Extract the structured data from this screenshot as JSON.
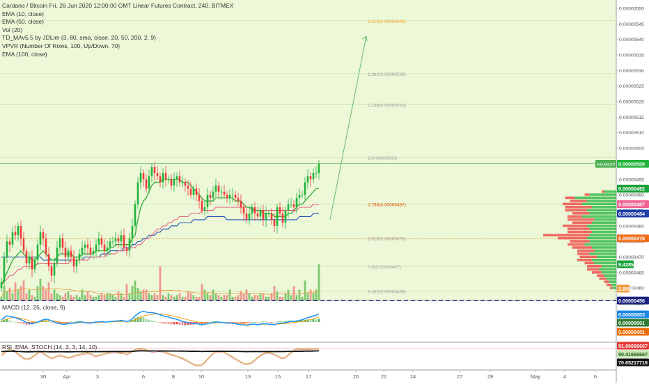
{
  "legend": {
    "title": "Cardano / Bitcoin Fri, 26 Jun 2020 12:00:00 GMT Linear Futures Contract, 240, BITMEX",
    "studies": [
      "EMA (10, close)",
      "EMA (50, close)",
      "Vol (20)",
      "TD_MAv5.5 by JDLim (3, 80, sma, close, 20, 50, 200, 2, 9)",
      "VPVR (Number Of Rows, 100, Up/Down, 70)",
      "EMA (100, close)"
    ]
  },
  "macd_label": "MACD (12, 26, close, 9)",
  "rsi_label": "RSI_EMA_STOCH (14, 3, 3, 14, 10)",
  "price_axis": {
    "ticks": [
      "0.00000550",
      "0.00000545",
      "0.00000540",
      "0.00000535",
      "0.00000530",
      "0.00000525",
      "0.00000520",
      "0.00000515",
      "0.00000510",
      "0.00000505",
      "0.00000500",
      "0.00000495",
      "0.00000490",
      "0.00000485",
      "0.00000480",
      "0.00000475",
      "0.00000470",
      "0.00000465",
      "0.00000460",
      "0.00000456"
    ],
    "tick_values": [
      550,
      545,
      540,
      535,
      530,
      525,
      520,
      515,
      510,
      505,
      500,
      495,
      490,
      485,
      480,
      475,
      470,
      465,
      460,
      455
    ]
  },
  "badges": {
    "adam20_label": "ADAM20",
    "adam20_value": "0.00000500",
    "ema10": "0.00000492",
    "ema50": "0.00000487",
    "ema100": "0.00000484",
    "fib618": "0.00000476",
    "volume": "9.428M",
    "vol2": "2.85M",
    "hline": "0.00000456",
    "macd_signal": "0.00000003",
    "macd_line": "0.00000001",
    "macd_hist": "0.00000001",
    "rsi_top": "91.66666667",
    "rsi_mid": "90.41666667",
    "rsi_low": "70.65217718"
  },
  "fib_levels": [
    {
      "label": "1.618(0.00000546)",
      "value": 546,
      "color": "#f5a623"
    },
    {
      "label": "1.382(0.00000529)",
      "value": 529,
      "color": "#9e9e9e"
    },
    {
      "label": "1.236(0.00000519)",
      "value": 519,
      "color": "#9e9e9e"
    },
    {
      "label": "1(0.00000502)",
      "value": 502,
      "color": "#9e9e9e"
    },
    {
      "label": "0.786(0.00000487)",
      "value": 487,
      "color": "#e65100"
    },
    {
      "label": "0.618(0.00000476)",
      "value": 476,
      "color": "#9e9e9e"
    },
    {
      "label": "0.5(0.00000467)",
      "value": 467,
      "color": "#9e9e9e"
    },
    {
      "label": "0.382(0.00000459)",
      "value": 459,
      "color": "#9e9e9e"
    }
  ],
  "time_axis": {
    "labels": [
      "30",
      "Apr",
      "3",
      "6",
      "8",
      "10",
      "13",
      "15",
      "17",
      "20",
      "22",
      "24",
      "27",
      "29",
      "May",
      "4",
      "6"
    ]
  },
  "chart_data": {
    "type": "candlestick",
    "ylim": [
      455,
      552
    ],
    "y_unit": "1e-8 BTC",
    "closes": [
      462,
      470,
      475,
      474,
      478,
      477,
      480,
      476,
      472,
      468,
      470,
      466,
      469,
      474,
      478,
      476,
      471,
      467,
      464,
      468,
      473,
      476,
      473,
      470,
      472,
      470,
      467,
      469,
      471,
      473,
      474,
      473,
      471,
      472,
      474,
      476,
      474,
      472,
      473,
      475,
      475,
      476,
      475,
      477,
      473,
      472,
      476,
      480,
      487,
      494,
      497,
      495,
      492,
      496,
      499,
      497,
      496,
      494,
      497,
      495,
      495,
      493,
      495,
      496,
      494,
      494,
      493,
      492,
      490,
      492,
      490,
      488,
      485,
      486,
      490,
      489,
      491,
      493,
      491,
      491,
      490,
      489,
      490,
      490,
      489,
      488,
      486,
      484,
      482,
      484,
      486,
      484,
      483,
      485,
      482,
      484,
      484,
      482,
      480,
      486,
      484,
      481,
      485,
      487,
      487,
      486,
      489,
      490,
      490,
      494,
      496,
      495,
      497,
      497,
      500
    ],
    "ema10": [
      461,
      463,
      465,
      467,
      469,
      470,
      471,
      472,
      471,
      470,
      470,
      469,
      469,
      470,
      471,
      472,
      471,
      470,
      469,
      469,
      470,
      471,
      471,
      471,
      471,
      471,
      470,
      470,
      470,
      471,
      471,
      471,
      471,
      471,
      472,
      472,
      472,
      472,
      472,
      473,
      473,
      474,
      474,
      474,
      474,
      474,
      474,
      476,
      477,
      482,
      486,
      488,
      489,
      491,
      493,
      494,
      494,
      494,
      495,
      495,
      495,
      495,
      495,
      495,
      495,
      494,
      494,
      494,
      493,
      492,
      491,
      490,
      489,
      488,
      488,
      488,
      488,
      489,
      489,
      489,
      489,
      489,
      489,
      489,
      488,
      488,
      488,
      487,
      486,
      486,
      486,
      485,
      485,
      485,
      484,
      484,
      484,
      484,
      483,
      483,
      483,
      483,
      483,
      484,
      484,
      485,
      486,
      487,
      487,
      488,
      489,
      490,
      491,
      492,
      492
    ],
    "ema50": [
      461,
      462,
      463,
      464,
      464,
      465,
      466,
      466,
      467,
      467,
      467,
      467,
      467,
      468,
      468,
      468,
      468,
      468,
      468,
      468,
      468,
      468,
      468,
      468,
      468,
      469,
      469,
      469,
      469,
      469,
      469,
      469,
      470,
      470,
      470,
      470,
      470,
      470,
      471,
      471,
      471,
      471,
      472,
      472,
      472,
      472,
      473,
      473,
      473,
      474,
      474,
      475,
      476,
      476,
      477,
      478,
      479,
      479,
      480,
      480,
      481,
      481,
      482,
      482,
      483,
      483,
      483,
      483,
      484,
      484,
      484,
      484,
      485,
      485,
      485,
      485,
      485,
      486,
      486,
      486,
      486,
      486,
      486,
      486,
      486,
      486,
      486,
      486,
      486,
      486,
      485,
      485,
      485,
      485,
      485,
      485,
      485,
      485,
      485,
      485,
      485,
      485,
      485,
      485,
      485,
      485,
      485,
      486,
      486,
      486,
      486,
      486,
      487,
      487,
      487
    ],
    "ema100": [
      470,
      470,
      470,
      470,
      470,
      470,
      470,
      470,
      470,
      470,
      470,
      470,
      470,
      470,
      470,
      469,
      469,
      469,
      469,
      469,
      469,
      469,
      469,
      469,
      469,
      469,
      469,
      469,
      469,
      469,
      470,
      470,
      470,
      470,
      470,
      470,
      471,
      471,
      471,
      472,
      472,
      472,
      472,
      472,
      473,
      473,
      473,
      474,
      474,
      475,
      475,
      476,
      476,
      477,
      477,
      477,
      478,
      478,
      479,
      479,
      479,
      480,
      480,
      480,
      481,
      481,
      481,
      481,
      481,
      482,
      482,
      482,
      482,
      482,
      483,
      483,
      483,
      483,
      483,
      483,
      483,
      482,
      482,
      482,
      482,
      482,
      482,
      482,
      482,
      482,
      482,
      482,
      482,
      482,
      482,
      482,
      482,
      482,
      482,
      482,
      482,
      482,
      482,
      482,
      482,
      482,
      482,
      483,
      483,
      483,
      483,
      483,
      484,
      484,
      484
    ],
    "volume": [
      0.1,
      0.4,
      0.25,
      0.35,
      0.2,
      0.5,
      0.3,
      0.4,
      0.55,
      0.2,
      0.3,
      0.15,
      0.1,
      0.4,
      0.6,
      0.4,
      0.3,
      0.5,
      0.2,
      0.3,
      0.2,
      0.15,
      0.1,
      0.2,
      0.25,
      0.15,
      0.1,
      0.15,
      0.1,
      0.3,
      0.15,
      0.25,
      0.15,
      0.1,
      0.1,
      0.15,
      0.2,
      0.15,
      0.2,
      0.2,
      0.15,
      0.1,
      0.25,
      0.2,
      0.1,
      0.45,
      0.2,
      0.4,
      0.55,
      0.35,
      0.25,
      0.3,
      0.3,
      0.2,
      0.15,
      0.2,
      0.15,
      0.95,
      0.15,
      0.1,
      0.2,
      0.15,
      0.1,
      0.15,
      0.2,
      0.1,
      0.1,
      0.25,
      0.2,
      0.15,
      0.1,
      0.1,
      0.45,
      0.3,
      0.2,
      0.15,
      0.3,
      0.2,
      0.15,
      0.1,
      0.15,
      0.15,
      0.3,
      0.1,
      0.1,
      0.15,
      0.25,
      0.2,
      0.3,
      0.2,
      0.1,
      0.15,
      0.15,
      0.2,
      0.2,
      0.1,
      0.1,
      0.2,
      0.4,
      0.25,
      0.1,
      0.1,
      0.2,
      0.3,
      0.15,
      0.4,
      0.15,
      0.3,
      0.1,
      0.55,
      0.2,
      0.3,
      0.2,
      0.3,
      1.0
    ],
    "price_levels": {
      "adam20": 500,
      "ema10": 492,
      "ema50": 487,
      "ema100": 484,
      "fib618": 476,
      "hline": 456
    },
    "target_arrow": {
      "from": {
        "bar": 118,
        "price": 482
      },
      "to": {
        "bar": 131,
        "price": 541
      }
    },
    "vpvr": [
      {
        "price": 491,
        "up": 0.25,
        "down": 0.05
      },
      {
        "price": 490,
        "up": 0.55,
        "down": 0.1
      },
      {
        "price": 489,
        "up": 0.85,
        "down": 0.2
      },
      {
        "price": 488,
        "up": 0.6,
        "down": 0.35
      },
      {
        "price": 487,
        "up": 0.7,
        "down": 0.4
      },
      {
        "price": 486,
        "up": 0.5,
        "down": 0.55
      },
      {
        "price": 485,
        "up": 0.6,
        "down": 0.45
      },
      {
        "price": 484,
        "up": 0.55,
        "down": 0.35
      },
      {
        "price": 483,
        "up": 0.7,
        "down": 0.3
      },
      {
        "price": 482,
        "up": 0.45,
        "down": 0.55
      },
      {
        "price": 481,
        "up": 0.5,
        "down": 0.4
      },
      {
        "price": 480,
        "up": 0.6,
        "down": 0.5
      },
      {
        "price": 479,
        "up": 0.55,
        "down": 0.45
      },
      {
        "price": 478,
        "up": 0.5,
        "down": 0.5
      },
      {
        "price": 477,
        "up": 0.55,
        "down": 0.95
      },
      {
        "price": 476,
        "up": 0.6,
        "down": 0.6
      },
      {
        "price": 475,
        "up": 0.55,
        "down": 0.4
      },
      {
        "price": 474,
        "up": 0.65,
        "down": 0.35
      },
      {
        "price": 473,
        "up": 0.5,
        "down": 0.4
      },
      {
        "price": 472,
        "up": 0.45,
        "down": 0.35
      },
      {
        "price": 471,
        "up": 0.55,
        "down": 0.25
      },
      {
        "price": 470,
        "up": 0.4,
        "down": 0.35
      },
      {
        "price": 469,
        "up": 0.5,
        "down": 0.3
      },
      {
        "price": 468,
        "up": 0.45,
        "down": 0.2
      },
      {
        "price": 467,
        "up": 0.3,
        "down": 0.3
      },
      {
        "price": 466,
        "up": 0.35,
        "down": 0.25
      },
      {
        "price": 465,
        "up": 0.3,
        "down": 0.2
      },
      {
        "price": 464,
        "up": 0.25,
        "down": 0.15
      },
      {
        "price": 463,
        "up": 0.2,
        "down": 0.15
      },
      {
        "price": 462,
        "up": 0.15,
        "down": 0.1
      },
      {
        "price": 461,
        "up": 0.1,
        "down": 0.1
      },
      {
        "price": 460,
        "up": 0.08,
        "down": 0.05
      }
    ],
    "macd": {
      "line": [
        0.2,
        0.4,
        0.55,
        0.5,
        0.45,
        0.4,
        0.3,
        0.2,
        0.1,
        -0.05,
        -0.1,
        -0.15,
        -0.1,
        0.0,
        0.1,
        0.2,
        0.25,
        0.2,
        0.1,
        0.0,
        -0.1,
        -0.15,
        -0.2,
        -0.2,
        -0.15,
        -0.1,
        -0.1,
        -0.05,
        0.0,
        0.0,
        -0.05,
        -0.1,
        -0.1,
        -0.05,
        0.0,
        0.0,
        0.05,
        0.0,
        0.0,
        0.05,
        0.05,
        0.1,
        0.1,
        0.15,
        0.1,
        0.05,
        0.1,
        0.3,
        0.55,
        0.75,
        0.9,
        0.95,
        0.9,
        0.85,
        0.85,
        0.8,
        0.75,
        0.65,
        0.55,
        0.5,
        0.45,
        0.35,
        0.3,
        0.25,
        0.15,
        0.05,
        0.0,
        -0.05,
        -0.1,
        -0.15,
        -0.15,
        -0.2,
        -0.25,
        -0.2,
        -0.15,
        -0.1,
        -0.05,
        0.0,
        0.0,
        -0.05,
        -0.05,
        -0.1,
        -0.1,
        -0.1,
        -0.15,
        -0.2,
        -0.25,
        -0.25,
        -0.3,
        -0.25,
        -0.2,
        -0.2,
        -0.25,
        -0.2,
        -0.15,
        -0.15,
        -0.2,
        -0.2,
        -0.25,
        -0.15,
        -0.1,
        -0.1,
        -0.05,
        0.0,
        0.05,
        0.05,
        0.1,
        0.15,
        0.2,
        0.3,
        0.4,
        0.45,
        0.55,
        0.6,
        0.75
      ],
      "signal": [
        0.1,
        0.2,
        0.3,
        0.35,
        0.4,
        0.4,
        0.38,
        0.33,
        0.27,
        0.2,
        0.12,
        0.05,
        0.0,
        0.0,
        0.02,
        0.06,
        0.1,
        0.13,
        0.12,
        0.1,
        0.05,
        0.0,
        -0.05,
        -0.1,
        -0.12,
        -0.12,
        -0.12,
        -0.1,
        -0.08,
        -0.06,
        -0.05,
        -0.06,
        -0.07,
        -0.06,
        -0.05,
        -0.04,
        -0.02,
        -0.01,
        0.0,
        0.01,
        0.02,
        0.04,
        0.05,
        0.07,
        0.08,
        0.08,
        0.08,
        0.12,
        0.2,
        0.3,
        0.42,
        0.52,
        0.6,
        0.65,
        0.7,
        0.72,
        0.73,
        0.72,
        0.7,
        0.66,
        0.62,
        0.57,
        0.51,
        0.46,
        0.4,
        0.33,
        0.27,
        0.2,
        0.14,
        0.08,
        0.03,
        -0.02,
        -0.07,
        -0.1,
        -0.11,
        -0.11,
        -0.1,
        -0.08,
        -0.06,
        -0.06,
        -0.06,
        -0.07,
        -0.08,
        -0.08,
        -0.09,
        -0.11,
        -0.14,
        -0.16,
        -0.19,
        -0.2,
        -0.2,
        -0.2,
        -0.21,
        -0.21,
        -0.2,
        -0.19,
        -0.19,
        -0.19,
        -0.2,
        -0.19,
        -0.17,
        -0.16,
        -0.14,
        -0.11,
        -0.08,
        -0.05,
        -0.02,
        0.02,
        0.06,
        0.11,
        0.17,
        0.23,
        0.3,
        0.36,
        0.44
      ]
    },
    "stoch": {
      "k": [
        60,
        70,
        80,
        85,
        82,
        75,
        65,
        55,
        45,
        40,
        42,
        50,
        60,
        70,
        75,
        70,
        60,
        50,
        45,
        48,
        55,
        60,
        55,
        50,
        48,
        50,
        55,
        60,
        62,
        65,
        68,
        70,
        66,
        60,
        55,
        58,
        62,
        66,
        70,
        72,
        74,
        73,
        72,
        70,
        68,
        66,
        70,
        78,
        85,
        88,
        90,
        88,
        84,
        80,
        78,
        76,
        78,
        80,
        76,
        72,
        68,
        62,
        58,
        54,
        50,
        44,
        38,
        30,
        22,
        16,
        12,
        10,
        15,
        25,
        40,
        55,
        68,
        75,
        78,
        76,
        72,
        66,
        58,
        50,
        42,
        34,
        26,
        20,
        16,
        18,
        26,
        36,
        48,
        58,
        66,
        70,
        72,
        68,
        62,
        56,
        50,
        44,
        50,
        60,
        72,
        82,
        88,
        90,
        91,
        90,
        89,
        90,
        91,
        91,
        92
      ],
      "rsi": [
        55,
        58,
        60,
        62,
        62,
        60,
        57,
        55,
        52,
        50,
        50,
        51,
        53,
        55,
        56,
        55,
        53,
        51,
        50,
        50,
        52,
        53,
        52,
        51,
        51,
        51,
        52,
        53,
        53,
        54,
        54,
        55,
        54,
        53,
        53,
        53,
        54,
        55,
        55,
        56,
        56,
        56,
        56,
        56,
        55,
        55,
        56,
        59,
        63,
        67,
        69,
        68,
        67,
        67,
        68,
        67,
        67,
        66,
        67,
        66,
        66,
        65,
        65,
        65,
        64,
        64,
        63,
        62,
        61,
        61,
        60,
        59,
        57,
        58,
        60,
        59,
        60,
        61,
        61,
        61,
        60,
        59,
        60,
        60,
        59,
        58,
        57,
        55,
        54,
        55,
        57,
        56,
        55,
        57,
        55,
        56,
        56,
        55,
        54,
        57,
        56,
        55,
        57,
        58,
        58,
        58,
        60,
        61,
        61,
        63,
        65,
        64,
        66,
        67,
        70
      ]
    }
  }
}
